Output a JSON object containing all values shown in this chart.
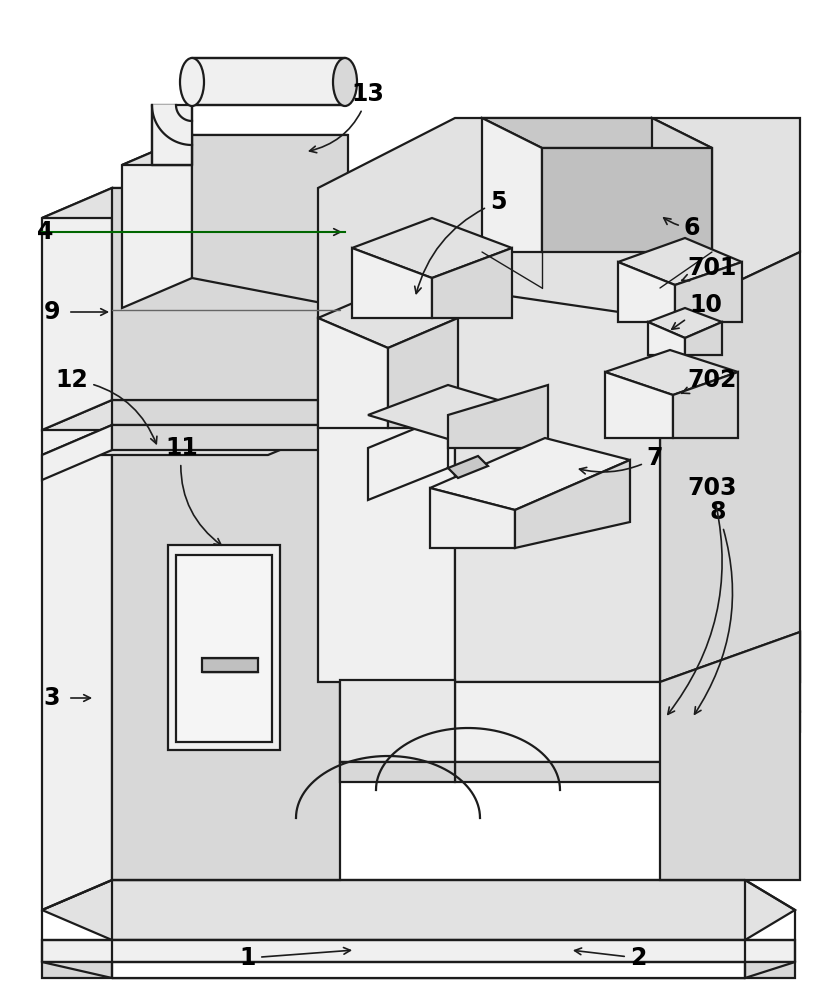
{
  "bg": "#ffffff",
  "lc": "#1c1c1c",
  "lw": 1.6,
  "lw_thin": 1.0,
  "label_fs": 17,
  "fill_top": "#e2e2e2",
  "fill_front": "#f0f0f0",
  "fill_right": "#d8d8d8",
  "fill_inner": "#c8c8c8"
}
